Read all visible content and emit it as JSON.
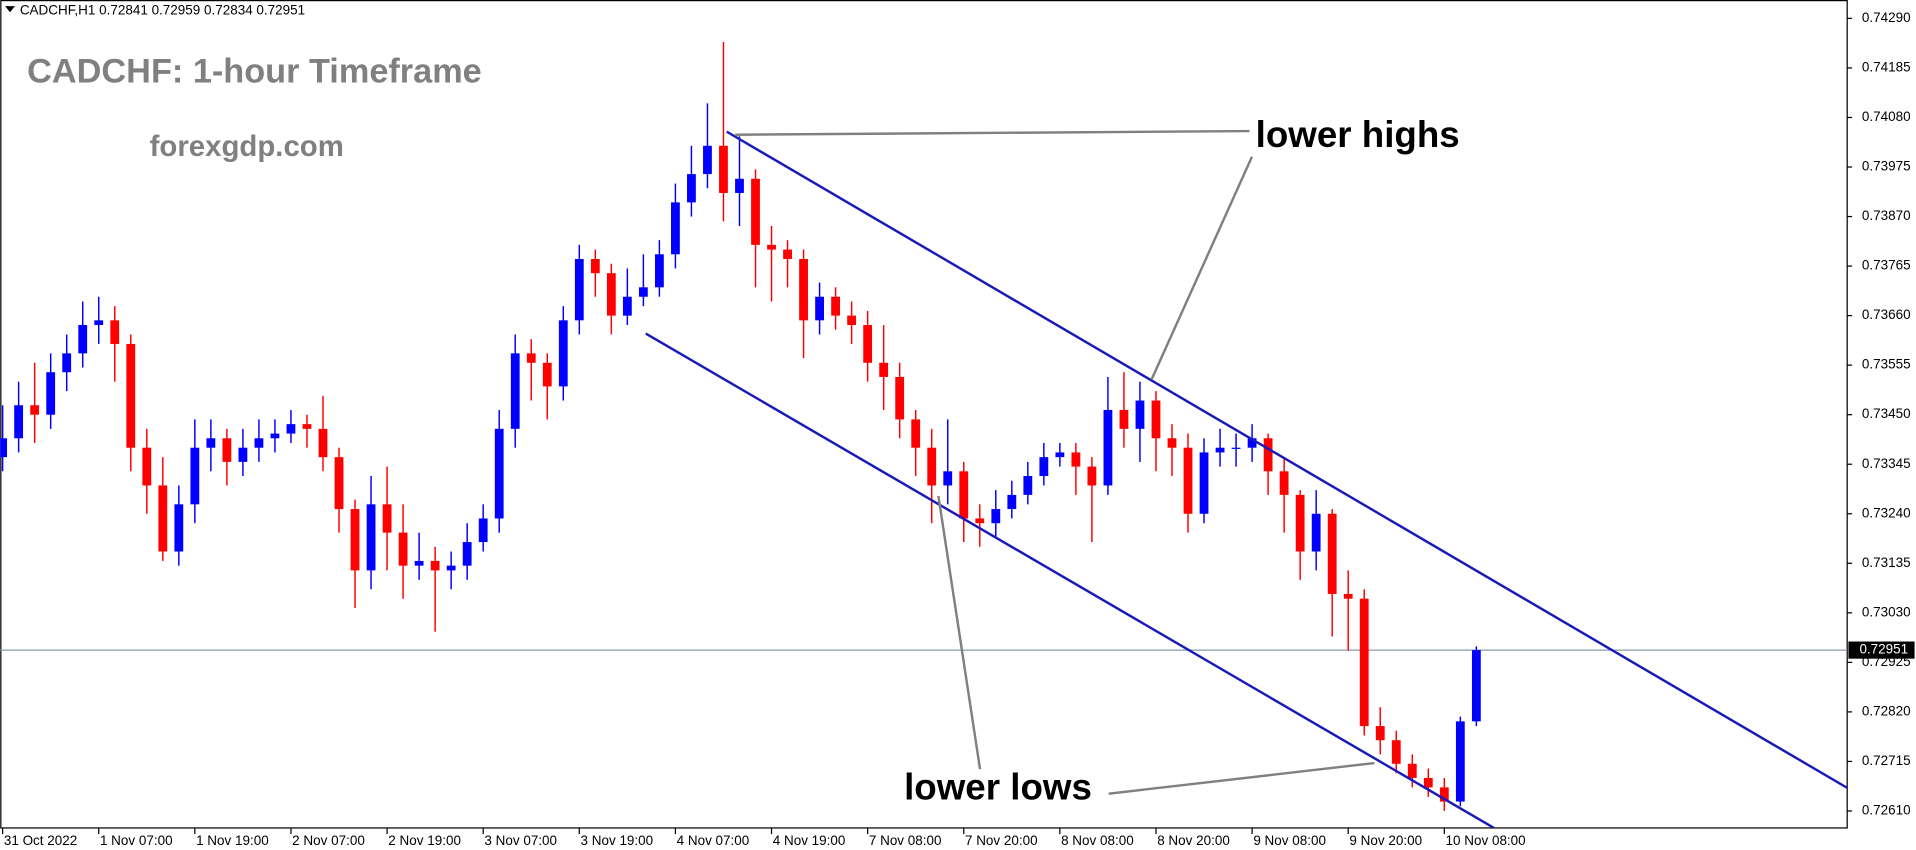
{
  "chart_data": {
    "type": "candlestick",
    "symbol_info": "CADCHF,H1  0.72841 0.72959 0.72834 0.72951",
    "title": "CADCHF: 1-hour Timeframe",
    "subtitle": "forexgdp.com",
    "annotations": [
      "lower highs",
      "lower lows"
    ],
    "bull_color": "#0000ff",
    "bear_color": "#ff0000",
    "line_color": "#1a1ab8",
    "xlim": [
      -0.3,
      230.3
    ],
    "ylim": [
      0.72574,
      0.74329
    ],
    "yticks": [
      {
        "value": 0.7429,
        "label": "0.74290"
      },
      0.74185,
      {
        "value": 0.7408,
        "label": "0.74080"
      },
      0.73975,
      {
        "value": 0.7387,
        "label": "0.73870"
      },
      0.73765,
      {
        "value": 0.7366,
        "label": "0.73660"
      },
      0.73555,
      {
        "value": 0.7345,
        "label": "0.73450"
      },
      0.73345,
      {
        "value": 0.7324,
        "label": "0.73240"
      },
      0.73135,
      {
        "value": 0.7303,
        "label": "0.73030"
      },
      0.72925,
      {
        "value": 0.7282,
        "label": "0.72820"
      },
      0.72715,
      {
        "value": 0.7261,
        "label": "0.72610"
      }
    ],
    "xticks": [
      {
        "value": 0,
        "label": "31 Oct 2022"
      },
      {
        "value": 12,
        "label": "1 Nov 07:00"
      },
      {
        "value": 24,
        "label": "1 Nov 19:00"
      },
      {
        "value": 36,
        "label": "2 Nov 07:00"
      },
      {
        "value": 48,
        "label": "2 Nov 19:00"
      },
      {
        "value": 60,
        "label": "3 Nov 07:00"
      },
      {
        "value": 72,
        "label": "3 Nov 19:00"
      },
      {
        "value": 84,
        "label": "4 Nov 07:00"
      },
      {
        "value": 96,
        "label": "4 Nov 19:00"
      },
      {
        "value": 108,
        "label": "7 Nov 08:00"
      },
      {
        "value": 120,
        "label": "7 Nov 20:00"
      },
      {
        "value": 132,
        "label": "8 Nov 08:00"
      },
      {
        "value": 144,
        "label": "8 Nov 20:00"
      },
      {
        "value": 156,
        "label": "9 Nov 08:00"
      },
      {
        "value": 168,
        "label": "9 Nov 20:00"
      },
      {
        "value": 180,
        "label": "10 Nov 08:00"
      }
    ],
    "current_price": 0.72951,
    "x": [
      0,
      2,
      4,
      6,
      8,
      10,
      12,
      14,
      16,
      18,
      20,
      22,
      24,
      26,
      28,
      30,
      32,
      34,
      36,
      38,
      40,
      42,
      44,
      46,
      48,
      50,
      52,
      54,
      56,
      58,
      60,
      62,
      64,
      66,
      68,
      70,
      72,
      74,
      76,
      78,
      80,
      82,
      84,
      86,
      88,
      90,
      92,
      94,
      96,
      98,
      100,
      102,
      104,
      106,
      108,
      110,
      112,
      114,
      116,
      118,
      120,
      122,
      124,
      126,
      128,
      130,
      132,
      134,
      136,
      138,
      140,
      142,
      144,
      146,
      148,
      150,
      152,
      154,
      156,
      158,
      160,
      162,
      164,
      166,
      168,
      170,
      172,
      174,
      176,
      178,
      180,
      182,
      184
    ],
    "open": [
      0.7336,
      0.734,
      0.7347,
      0.7345,
      0.7354,
      0.7358,
      0.7364,
      0.7365,
      0.736,
      0.7338,
      0.733,
      0.7316,
      0.7326,
      0.7338,
      0.734,
      0.7335,
      0.7338,
      0.734,
      0.7341,
      0.7343,
      0.7342,
      0.7336,
      0.7325,
      0.7312,
      0.7326,
      0.732,
      0.7313,
      0.7314,
      0.7312,
      0.7313,
      0.7318,
      0.7323,
      0.7342,
      0.7358,
      0.7356,
      0.7351,
      0.7365,
      0.7378,
      0.7375,
      0.7366,
      0.737,
      0.7372,
      0.7379,
      0.739,
      0.7396,
      0.7402,
      0.7392,
      0.7395,
      0.7381,
      0.738,
      0.7378,
      0.7365,
      0.737,
      0.7366,
      0.7364,
      0.7356,
      0.7353,
      0.7344,
      0.7338,
      0.733,
      0.7333,
      0.7323,
      0.7322,
      0.7325,
      0.7328,
      0.7332,
      0.7336,
      0.7337,
      0.7334,
      0.733,
      0.7346,
      0.7342,
      0.7348,
      0.734,
      0.7338,
      0.7324,
      0.7337,
      0.7338,
      0.7338,
      0.734,
      0.7333,
      0.7328,
      0.7316,
      0.7324,
      0.7307,
      0.7306,
      0.7279,
      0.7276,
      0.7271,
      0.7268,
      0.7266,
      0.7263,
      0.728
    ],
    "high": [
      0.7347,
      0.7352,
      0.7356,
      0.7358,
      0.7362,
      0.7369,
      0.737,
      0.7368,
      0.7362,
      0.7342,
      0.7336,
      0.733,
      0.7344,
      0.7344,
      0.7342,
      0.7342,
      0.7344,
      0.7344,
      0.7346,
      0.7345,
      0.7349,
      0.7338,
      0.7327,
      0.7332,
      0.7334,
      0.7326,
      0.732,
      0.7317,
      0.7316,
      0.7322,
      0.7326,
      0.7346,
      0.7362,
      0.7361,
      0.7358,
      0.7368,
      0.7381,
      0.738,
      0.7377,
      0.7376,
      0.7379,
      0.7382,
      0.7394,
      0.7402,
      0.7411,
      0.7424,
      0.7404,
      0.7397,
      0.7385,
      0.7382,
      0.738,
      0.7373,
      0.7372,
      0.7369,
      0.7367,
      0.7364,
      0.7356,
      0.7346,
      0.7342,
      0.7344,
      0.7335,
      0.7326,
      0.7329,
      0.7331,
      0.7335,
      0.7339,
      0.7339,
      0.7339,
      0.7336,
      0.7353,
      0.7354,
      0.7352,
      0.735,
      0.7343,
      0.7341,
      0.734,
      0.7342,
      0.7341,
      0.7343,
      0.7341,
      0.7336,
      0.7329,
      0.7329,
      0.7325,
      0.7312,
      0.7308,
      0.7283,
      0.7278,
      0.7273,
      0.727,
      0.7268,
      0.7281,
      0.72959
    ],
    "low": [
      0.7333,
      0.7337,
      0.7339,
      0.7342,
      0.735,
      0.7355,
      0.736,
      0.7352,
      0.7333,
      0.7324,
      0.7314,
      0.7313,
      0.7322,
      0.7333,
      0.733,
      0.7332,
      0.7335,
      0.7337,
      0.7339,
      0.7338,
      0.7333,
      0.732,
      0.7304,
      0.7308,
      0.7312,
      0.7306,
      0.731,
      0.7299,
      0.7308,
      0.731,
      0.7316,
      0.732,
      0.7338,
      0.7348,
      0.7344,
      0.7348,
      0.7362,
      0.737,
      0.7362,
      0.7364,
      0.7368,
      0.737,
      0.7376,
      0.7387,
      0.7393,
      0.7386,
      0.7385,
      0.7372,
      0.7369,
      0.7372,
      0.7357,
      0.7362,
      0.7363,
      0.736,
      0.7352,
      0.7346,
      0.734,
      0.7332,
      0.7322,
      0.7326,
      0.7318,
      0.7317,
      0.7319,
      0.7323,
      0.7326,
      0.733,
      0.7334,
      0.7328,
      0.7318,
      0.7328,
      0.7338,
      0.7335,
      0.7333,
      0.7332,
      0.732,
      0.7322,
      0.7334,
      0.7334,
      0.7335,
      0.7328,
      0.732,
      0.731,
      0.7312,
      0.7298,
      0.7295,
      0.7277,
      0.7273,
      0.7269,
      0.7266,
      0.7264,
      0.7261,
      0.7262,
      0.7279
    ],
    "close": [
      0.734,
      0.7347,
      0.7345,
      0.7354,
      0.7358,
      0.7364,
      0.7365,
      0.736,
      0.7338,
      0.733,
      0.7316,
      0.7326,
      0.7338,
      0.734,
      0.7335,
      0.7338,
      0.734,
      0.7341,
      0.7343,
      0.7342,
      0.7336,
      0.7325,
      0.7312,
      0.7326,
      0.732,
      0.7313,
      0.7314,
      0.7312,
      0.7313,
      0.7318,
      0.7323,
      0.7342,
      0.7358,
      0.7356,
      0.7351,
      0.7365,
      0.7378,
      0.7375,
      0.7366,
      0.737,
      0.7372,
      0.7379,
      0.739,
      0.7396,
      0.7402,
      0.7392,
      0.7395,
      0.7381,
      0.738,
      0.7378,
      0.7365,
      0.737,
      0.7366,
      0.7364,
      0.7356,
      0.7353,
      0.7344,
      0.7338,
      0.733,
      0.7333,
      0.7323,
      0.7322,
      0.7325,
      0.7328,
      0.7332,
      0.7336,
      0.7337,
      0.7334,
      0.733,
      0.7346,
      0.7342,
      0.7348,
      0.734,
      0.7338,
      0.7324,
      0.7337,
      0.7338,
      0.7338,
      0.734,
      0.7333,
      0.7328,
      0.7316,
      0.7324,
      0.7307,
      0.7306,
      0.7279,
      0.7276,
      0.7271,
      0.7268,
      0.7266,
      0.7263,
      0.728,
      0.72951
    ],
    "trendlines": [
      {
        "start": [
          90.4,
          0.7405
        ],
        "end": [
          230.3,
          0.72659
        ]
      },
      {
        "start": [
          80.3,
          0.73622
        ],
        "end": [
          186.2,
          0.72574
        ]
      }
    ]
  }
}
